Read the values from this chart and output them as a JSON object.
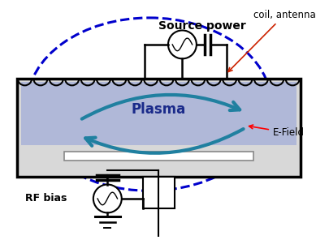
{
  "bg_color": "#ffffff",
  "plasma_color": "#b0b8d8",
  "dashed_circle_color": "#0000cc",
  "arrow_color": "#2080a0",
  "source_power_label": "Source power",
  "plasma_label": "Plasma",
  "efield_label": "E-Field",
  "rfbias_label": "RF bias",
  "coil_antenna_label": "coil, antenna"
}
